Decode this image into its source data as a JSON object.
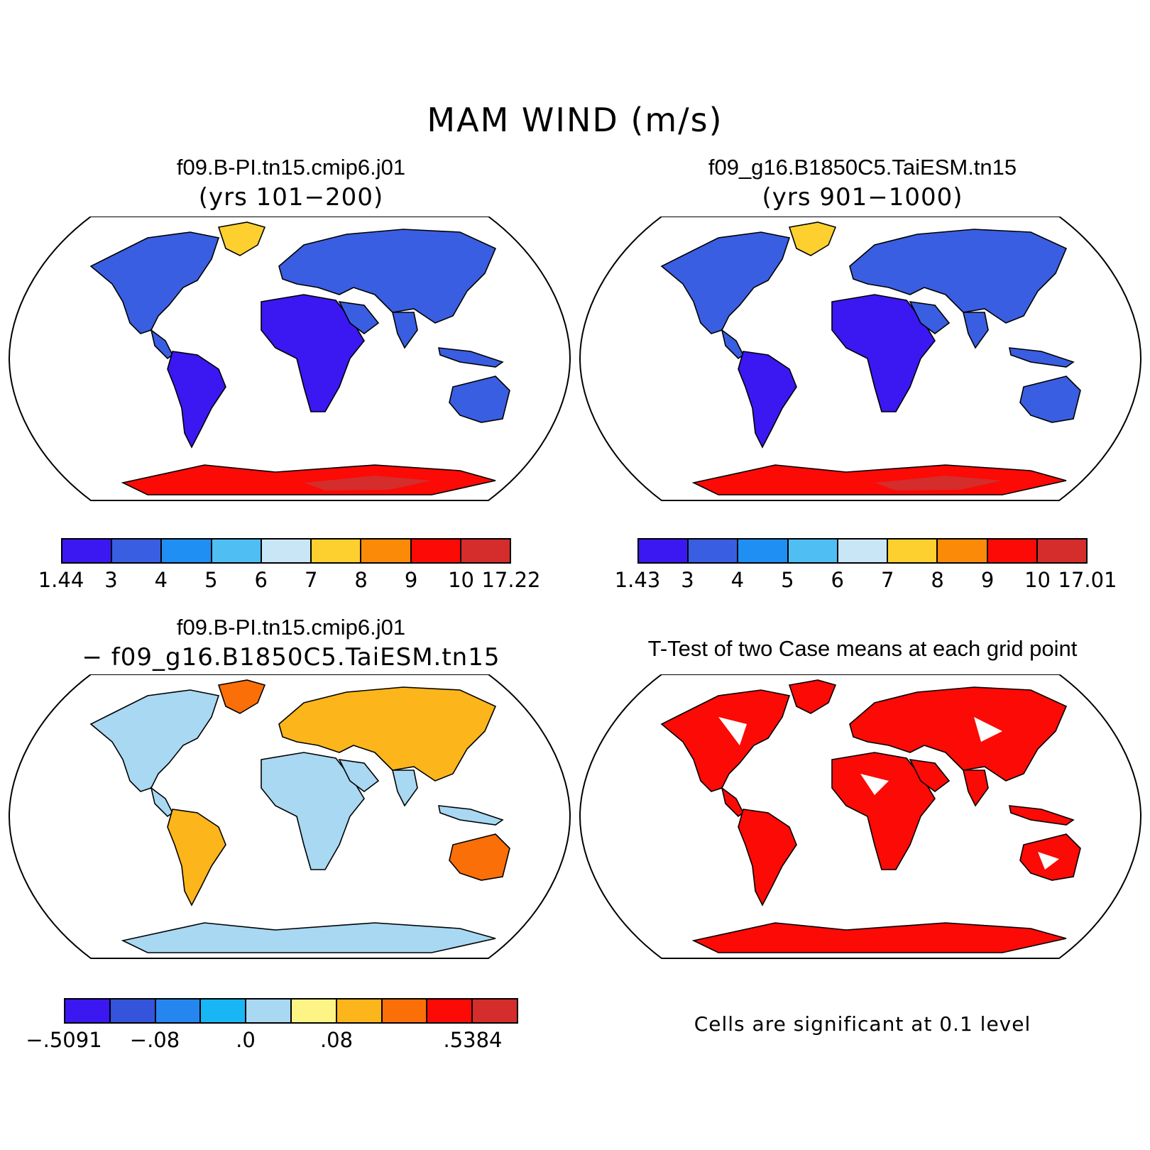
{
  "title": "MAM WIND (m/s)",
  "panels": {
    "top_left": {
      "title": "f09.B-PI.tn15.cmip6.j01",
      "subtitle": "(yrs 101−200)"
    },
    "top_right": {
      "title": "f09_g16.B1850C5.TaiESM.tn15",
      "subtitle": "(yrs 901−1000)"
    },
    "bottom_left": {
      "title": "f09.B-PI.tn15.cmip6.j01",
      "subtitle": "− f09_g16.B1850C5.TaiESM.tn15"
    },
    "bottom_right": {
      "title": "T-Test of two Case means at each grid point",
      "note": "Cells are significant at 0.1 level"
    }
  },
  "colorbars": {
    "top_left": {
      "colors": [
        "#3b17f2",
        "#3a5ee1",
        "#1f8ff3",
        "#4fbef3",
        "#c9e6f6",
        "#fdd02f",
        "#fb8a08",
        "#fb0a06",
        "#d52c2c"
      ],
      "labels": [
        "1.44",
        "3",
        "4",
        "5",
        "6",
        "7",
        "8",
        "9",
        "10",
        "17.22"
      ]
    },
    "top_right": {
      "colors": [
        "#3b17f2",
        "#3a5ee1",
        "#1f8ff3",
        "#4fbef3",
        "#c9e6f6",
        "#fdd02f",
        "#fb8a08",
        "#fb0a06",
        "#d52c2c"
      ],
      "labels": [
        "1.43",
        "3",
        "4",
        "5",
        "6",
        "7",
        "8",
        "9",
        "10",
        "17.01"
      ]
    },
    "bottom_left": {
      "colors": [
        "#3b17f2",
        "#3454dc",
        "#2686f0",
        "#18b6f4",
        "#a8d8f2",
        "#fdf486",
        "#fcb51a",
        "#fb6f08",
        "#fb0a06",
        "#d52c2c"
      ],
      "labels": [
        "−.5091",
        "",
        "−.08",
        "",
        ".0",
        "",
        ".08",
        "",
        "",
        ".5384"
      ]
    }
  },
  "map_fills": {
    "land_mean": "#3a5ee1",
    "land_low": "#3b17f2",
    "land_high": "#4fbef3",
    "antarctic_a": "#fb0a06",
    "antarctic_b": "#d52c2c",
    "antarctic_c": "#fdd02f",
    "diff_a": "#a8d8f2",
    "diff_b": "#fcb51a",
    "diff_c": "#fb6f08",
    "diff_d": "#2686f0",
    "signif": "#fb0a06"
  }
}
